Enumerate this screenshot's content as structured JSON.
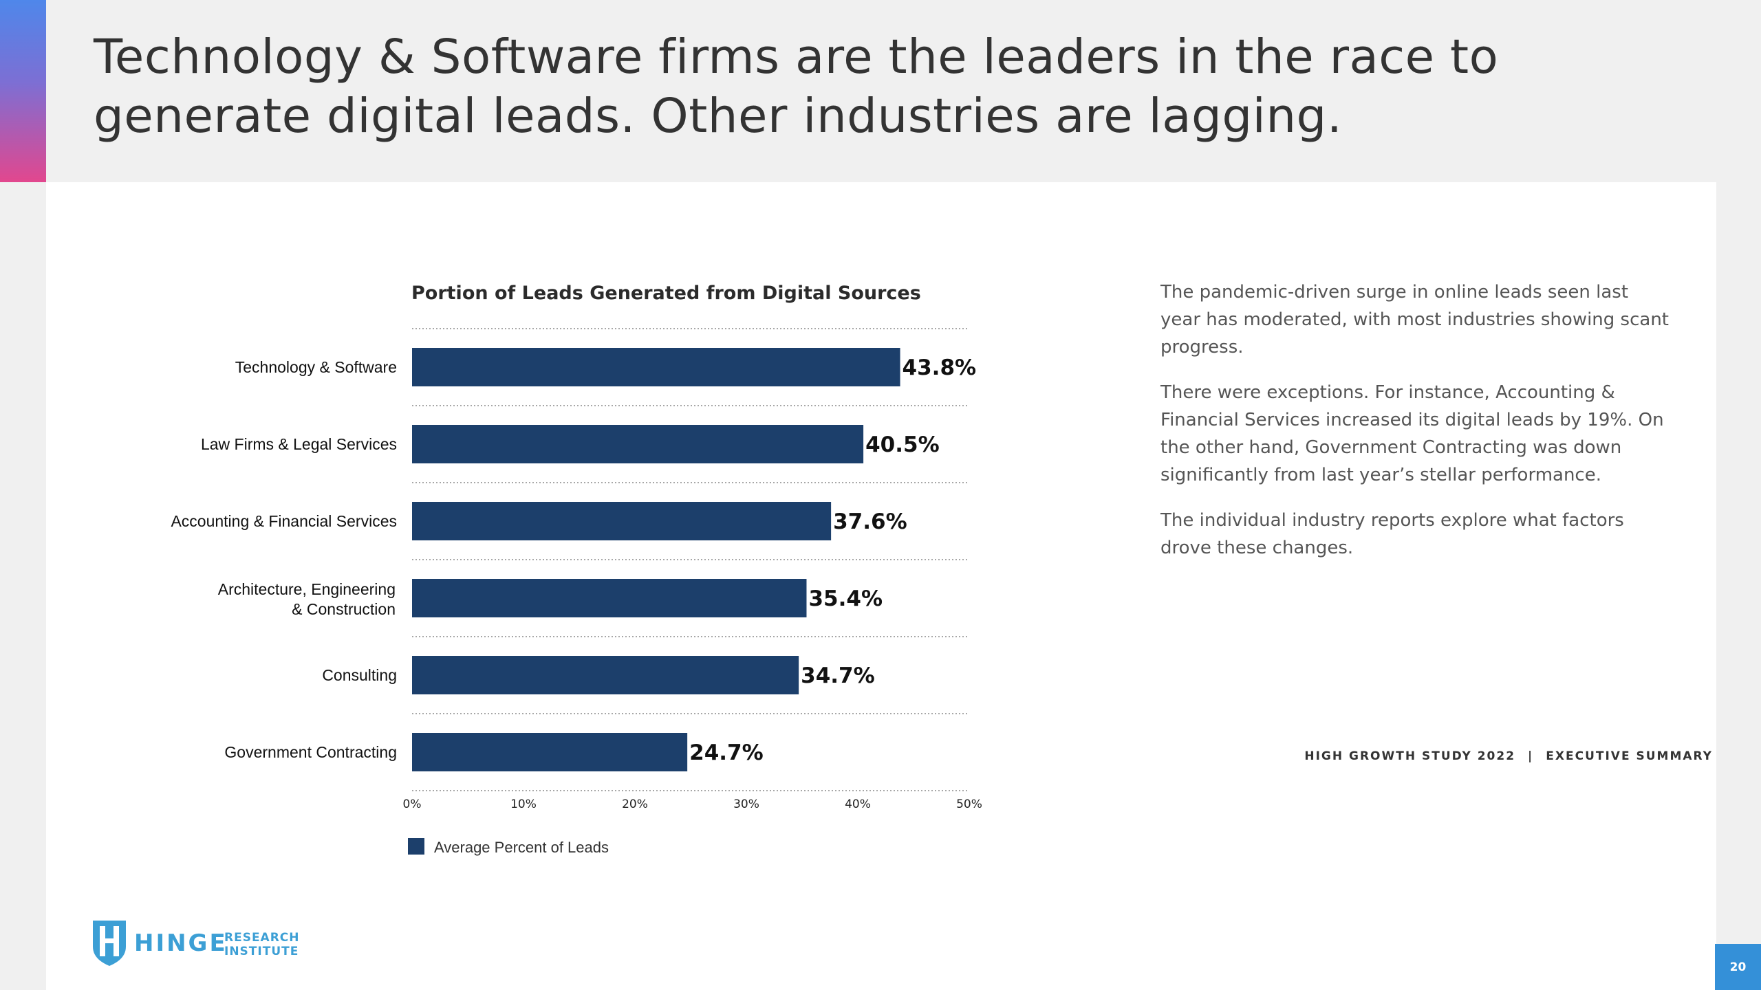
{
  "header": {
    "title": "Technology & Software firms are the leaders in the race to generate digital leads. Other industries are lagging."
  },
  "chart_data": {
    "type": "bar",
    "orientation": "horizontal",
    "title": "Portion of Leads Generated from Digital Sources",
    "categories": [
      "Technology & Software",
      "Law Firms & Legal Services",
      "Accounting & Financial Services",
      "Architecture, Engineering & Construction",
      "Consulting",
      "Government Contracting"
    ],
    "series": [
      {
        "name": "Average Percent of Leads",
        "values": [
          43.8,
          40.5,
          37.6,
          35.4,
          34.7,
          24.7
        ]
      }
    ],
    "data_labels": [
      "43.8%",
      "40.5%",
      "37.6%",
      "35.4%",
      "34.7%",
      "24.7%"
    ],
    "x_ticks": [
      "0%",
      "10%",
      "20%",
      "30%",
      "40%",
      "50%"
    ],
    "xlim": [
      0,
      50
    ],
    "xlabel": "",
    "ylabel": "",
    "legend": "bottom-left",
    "gridlines": "dotted-horizontal",
    "bar_color": "#1c3f6b"
  },
  "commentary": {
    "paragraphs": [
      "The pandemic-driven surge in online leads seen last year has moderated, with most industries showing scant progress.",
      "There were exceptions.  For instance, Accounting & Financial Services increased its digital leads by 19%. On the other hand, Government Contracting was down significantly from last year’s stellar performance.",
      "The individual industry reports explore what factors drove these changes."
    ]
  },
  "logo": {
    "wordmark": "HINGE",
    "line1": "RESEARCH",
    "line2": "INSTITUTE",
    "icon": "hinge-shield-icon",
    "color": "#3c9fd5"
  },
  "footer": {
    "left": "HIGH GROWTH STUDY 2022",
    "separator": "|",
    "right": "EXECUTIVE SUMMARY"
  },
  "page": {
    "number": "20"
  },
  "colors": {
    "accent_top": "#4f87ea",
    "accent_bottom": "#e2478e",
    "page_badge": "#3490d8"
  }
}
